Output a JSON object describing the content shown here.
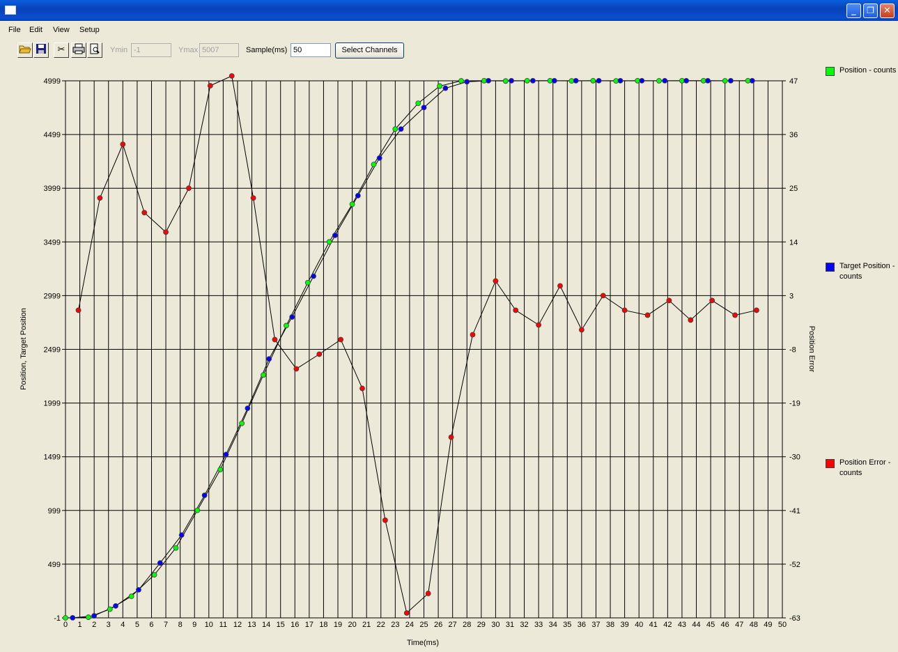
{
  "window": {
    "title": "",
    "controls": {
      "minimize": "_",
      "restore": "❐",
      "close": "✕"
    }
  },
  "menubar": [
    "File",
    "Edit",
    "View",
    "Setup"
  ],
  "toolbar": {
    "icons": [
      "open-folder-icon",
      "save-icon",
      "cut-icon",
      "print-icon",
      "print-preview-icon"
    ],
    "ymin_label": "Ymin",
    "ymin_value": "-1",
    "ymax_label": "Ymax",
    "ymax_value": "5007",
    "sample_label": "Sample(ms)",
    "sample_value": "50",
    "select_channels_label": "Select Channels"
  },
  "legend": [
    {
      "label": "Position - counts",
      "color": "#00ff00"
    },
    {
      "label": "Target Position - counts",
      "color": "#0000ff"
    },
    {
      "label": "Position Error - counts",
      "color": "#ff0000"
    }
  ],
  "chart_data": {
    "type": "line",
    "xlabel": "Time(ms)",
    "ylabel_left": "Position, Target Position",
    "ylabel_right": "Position Error",
    "xlim": [
      0,
      50
    ],
    "ylim_left": [
      -1,
      4999
    ],
    "ylim_right": [
      -63,
      47
    ],
    "x_ticks": [
      "0",
      "1",
      "2",
      "3",
      "4",
      "5",
      "6",
      "7",
      "8",
      "9",
      "10",
      "11",
      "12",
      "13",
      "14",
      "15",
      "16",
      "17",
      "18",
      "19",
      "20",
      "21",
      "22",
      "23",
      "24",
      "25",
      "26",
      "27",
      "28",
      "29",
      "30",
      "31",
      "32",
      "33",
      "34",
      "35",
      "36",
      "37",
      "38",
      "39",
      "40",
      "41",
      "42",
      "43",
      "44",
      "45",
      "46",
      "47",
      "48",
      "49",
      "50"
    ],
    "y_ticks_left": [
      "-1",
      "499",
      "999",
      "1499",
      "1999",
      "2499",
      "2999",
      "3499",
      "3999",
      "4499",
      "4999"
    ],
    "y_ticks_right": [
      "-63",
      "-52",
      "-41",
      "-30",
      "-19",
      "-8",
      "3",
      "14",
      "25",
      "36",
      "47"
    ],
    "grid": true,
    "series": [
      {
        "name": "Position - counts",
        "color": "#00ff00",
        "axis": "left",
        "x": [
          0,
          1.6,
          3.1,
          4.6,
          6.2,
          7.7,
          9.2,
          10.8,
          12.3,
          13.8,
          15.4,
          16.9,
          18.4,
          20,
          21.5,
          23,
          24.6,
          26.1,
          27.6,
          29.2,
          30.7,
          32.2,
          33.8,
          35.3,
          36.8,
          38.4,
          39.9,
          41.4,
          43,
          44.5,
          46,
          47.6
        ],
        "y": [
          -1,
          5,
          80,
          200,
          400,
          650,
          1000,
          1380,
          1810,
          2260,
          2720,
          3120,
          3500,
          3850,
          4220,
          4550,
          4790,
          4950,
          4999,
          5000,
          4997,
          5000,
          5000,
          4998,
          5000,
          4998,
          5000,
          4999,
          5000,
          5000,
          4999,
          5000
        ]
      },
      {
        "name": "Target Position - counts",
        "color": "#0000ff",
        "axis": "left",
        "x": [
          0.5,
          2,
          3.5,
          5.1,
          6.6,
          8.1,
          9.7,
          11.2,
          12.7,
          14.2,
          15.8,
          17.3,
          18.8,
          20.4,
          21.9,
          23.4,
          25,
          26.5,
          28,
          29.5,
          31.1,
          32.6,
          34.1,
          35.6,
          37.2,
          38.7,
          40.2,
          41.8,
          43.3,
          44.8,
          46.4,
          47.9
        ],
        "y": [
          0,
          18,
          110,
          260,
          510,
          770,
          1140,
          1520,
          1950,
          2410,
          2800,
          3180,
          3560,
          3930,
          4280,
          4550,
          4750,
          4930,
          4990,
          5000,
          5000,
          5000,
          5000,
          5000,
          5000,
          5000,
          5000,
          5000,
          5000,
          5000,
          5000,
          5000
        ]
      },
      {
        "name": "Position Error - counts",
        "color": "#ff0000",
        "axis": "right",
        "x": [
          0.9,
          2.4,
          4,
          5.5,
          7,
          8.6,
          10.1,
          11.6,
          13.1,
          14.6,
          16.1,
          17.7,
          19.2,
          20.7,
          22.3,
          23.8,
          25.3,
          26.9,
          28.4,
          30,
          31.4,
          33,
          34.5,
          36,
          37.5,
          39,
          40.6,
          42.1,
          43.6,
          45.1,
          46.7,
          48.2
        ],
        "y": [
          0,
          23,
          34,
          20,
          16,
          25,
          46,
          48,
          23,
          -6,
          -12,
          -9,
          -6,
          -16,
          -43,
          -62,
          -58,
          -26,
          -5,
          6,
          0,
          -3,
          5,
          -4,
          3,
          0,
          -1,
          2,
          -2,
          2,
          -1,
          0
        ]
      }
    ]
  }
}
